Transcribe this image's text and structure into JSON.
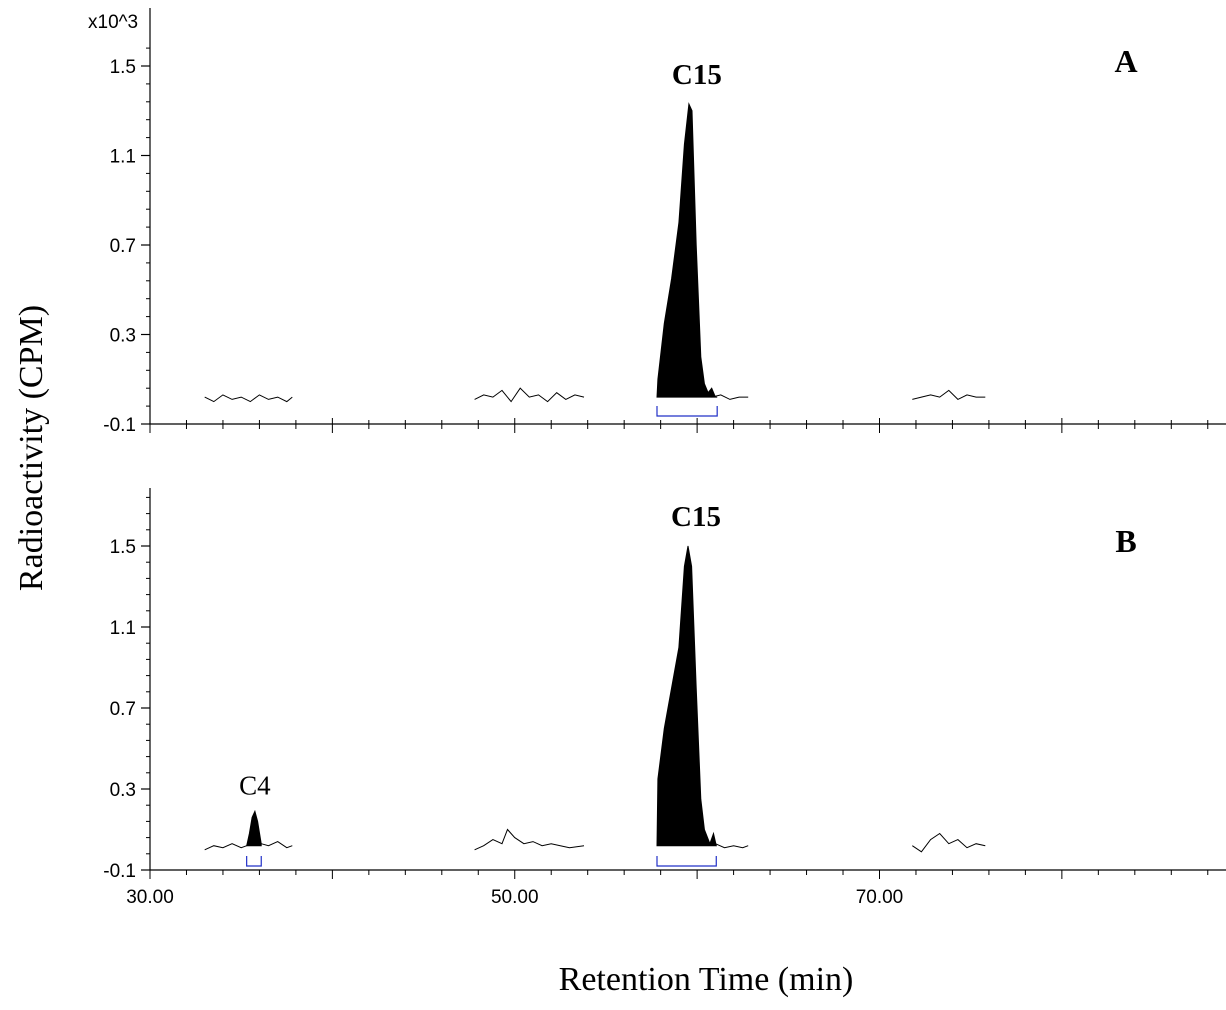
{
  "chart_data": {
    "type": "line",
    "scale_label": "x10^3",
    "ylabel": "Radioactivity (CPM)",
    "xlabel": "Retention Time (min)",
    "x_ticks": [
      "30.00",
      "50.00",
      "70.00"
    ],
    "xlim": [
      30,
      89
    ],
    "panels": [
      {
        "label": "A",
        "ylim": [
          -0.1,
          1.62
        ],
        "y_ticks": [
          {
            "value": 1.5,
            "text": "1.5"
          },
          {
            "value": 1.1,
            "text": "1.1"
          },
          {
            "value": 0.7,
            "text": "0.7"
          },
          {
            "value": 0.3,
            "text": "0.3"
          },
          {
            "value": -0.1,
            "text": "-0.1"
          }
        ],
        "baseline_segments": [
          {
            "x": [
              33.0,
              33.5,
              34.0,
              34.5,
              35.0,
              35.5,
              36.0,
              36.5,
              37.0,
              37.5,
              37.8
            ],
            "y": [
              0.02,
              0.0,
              0.03,
              0.01,
              0.02,
              0.0,
              0.03,
              0.01,
              0.02,
              0.0,
              0.02
            ]
          },
          {
            "x": [
              47.8,
              48.3,
              48.8,
              49.3,
              49.8,
              50.3,
              50.8,
              51.3,
              51.8,
              52.3,
              52.8,
              53.3,
              53.8
            ],
            "y": [
              0.01,
              0.03,
              0.02,
              0.05,
              0.0,
              0.06,
              0.02,
              0.03,
              0.0,
              0.04,
              0.01,
              0.03,
              0.02
            ]
          },
          {
            "x": [
              60.8,
              61.3,
              61.8,
              62.3,
              62.8
            ],
            "y": [
              0.02,
              0.03,
              0.01,
              0.02,
              0.02
            ]
          },
          {
            "x": [
              71.8,
              72.3,
              72.8,
              73.3,
              73.8,
              74.3,
              74.8,
              75.3,
              75.8
            ],
            "y": [
              0.01,
              0.02,
              0.03,
              0.02,
              0.05,
              0.01,
              0.03,
              0.02,
              0.02
            ]
          }
        ],
        "peaks": [
          {
            "name": "C15",
            "label_style": "bold",
            "x": [
              57.8,
              57.85,
              58.2,
              58.6,
              59.0,
              59.3,
              59.55,
              59.72,
              59.95,
              60.2,
              60.4,
              60.6,
              60.8,
              61.0,
              61.1
            ],
            "y": [
              0.02,
              0.1,
              0.35,
              0.55,
              0.8,
              1.15,
              1.33,
              1.3,
              0.7,
              0.2,
              0.08,
              0.04,
              0.06,
              0.02,
              0.02
            ],
            "integration_range": [
              57.8,
              61.1
            ]
          }
        ]
      },
      {
        "label": "B",
        "ylim": [
          -0.1,
          1.78
        ],
        "y_ticks": [
          {
            "value": 1.5,
            "text": "1.5"
          },
          {
            "value": 1.1,
            "text": "1.1"
          },
          {
            "value": 0.7,
            "text": "0.7"
          },
          {
            "value": 0.3,
            "text": "0.3"
          },
          {
            "value": -0.1,
            "text": "-0.1"
          }
        ],
        "baseline_segments": [
          {
            "x": [
              33.0,
              33.5,
              34.0,
              34.5,
              35.0,
              35.3
            ],
            "y": [
              0.0,
              0.02,
              0.01,
              0.03,
              0.01,
              0.02
            ]
          },
          {
            "x": [
              36.1,
              36.5,
              37.0,
              37.5,
              37.8
            ],
            "y": [
              0.03,
              0.02,
              0.04,
              0.01,
              0.02
            ]
          },
          {
            "x": [
              47.8,
              48.3,
              48.8,
              49.3,
              49.6,
              50.0,
              50.5,
              51.0,
              51.5,
              52.0,
              52.5,
              53.0,
              53.8
            ],
            "y": [
              0.0,
              0.02,
              0.05,
              0.03,
              0.1,
              0.06,
              0.03,
              0.04,
              0.02,
              0.03,
              0.02,
              0.01,
              0.02
            ]
          },
          {
            "x": [
              61.0,
              61.5,
              62.0,
              62.5,
              62.8
            ],
            "y": [
              0.03,
              0.01,
              0.02,
              0.01,
              0.02
            ]
          },
          {
            "x": [
              71.8,
              72.3,
              72.8,
              73.3,
              73.8,
              74.3,
              74.8,
              75.3,
              75.8
            ],
            "y": [
              0.02,
              -0.01,
              0.05,
              0.08,
              0.03,
              0.05,
              0.01,
              0.03,
              0.02
            ]
          }
        ],
        "peaks": [
          {
            "name": "C4",
            "label_style": "normal",
            "x": [
              35.3,
              35.45,
              35.6,
              35.75,
              35.9,
              36.1
            ],
            "y": [
              0.02,
              0.08,
              0.16,
              0.19,
              0.14,
              0.03
            ],
            "integration_range": [
              35.3,
              36.1
            ]
          },
          {
            "name": "C15",
            "label_style": "bold",
            "x": [
              57.8,
              57.85,
              58.2,
              58.6,
              59.0,
              59.3,
              59.5,
              59.7,
              59.95,
              60.2,
              60.4,
              60.7,
              60.9,
              61.05
            ],
            "y": [
              0.02,
              0.35,
              0.6,
              0.8,
              1.0,
              1.4,
              1.5,
              1.4,
              0.8,
              0.25,
              0.1,
              0.03,
              0.08,
              0.02
            ],
            "integration_range": [
              57.8,
              61.05
            ]
          }
        ]
      }
    ]
  }
}
